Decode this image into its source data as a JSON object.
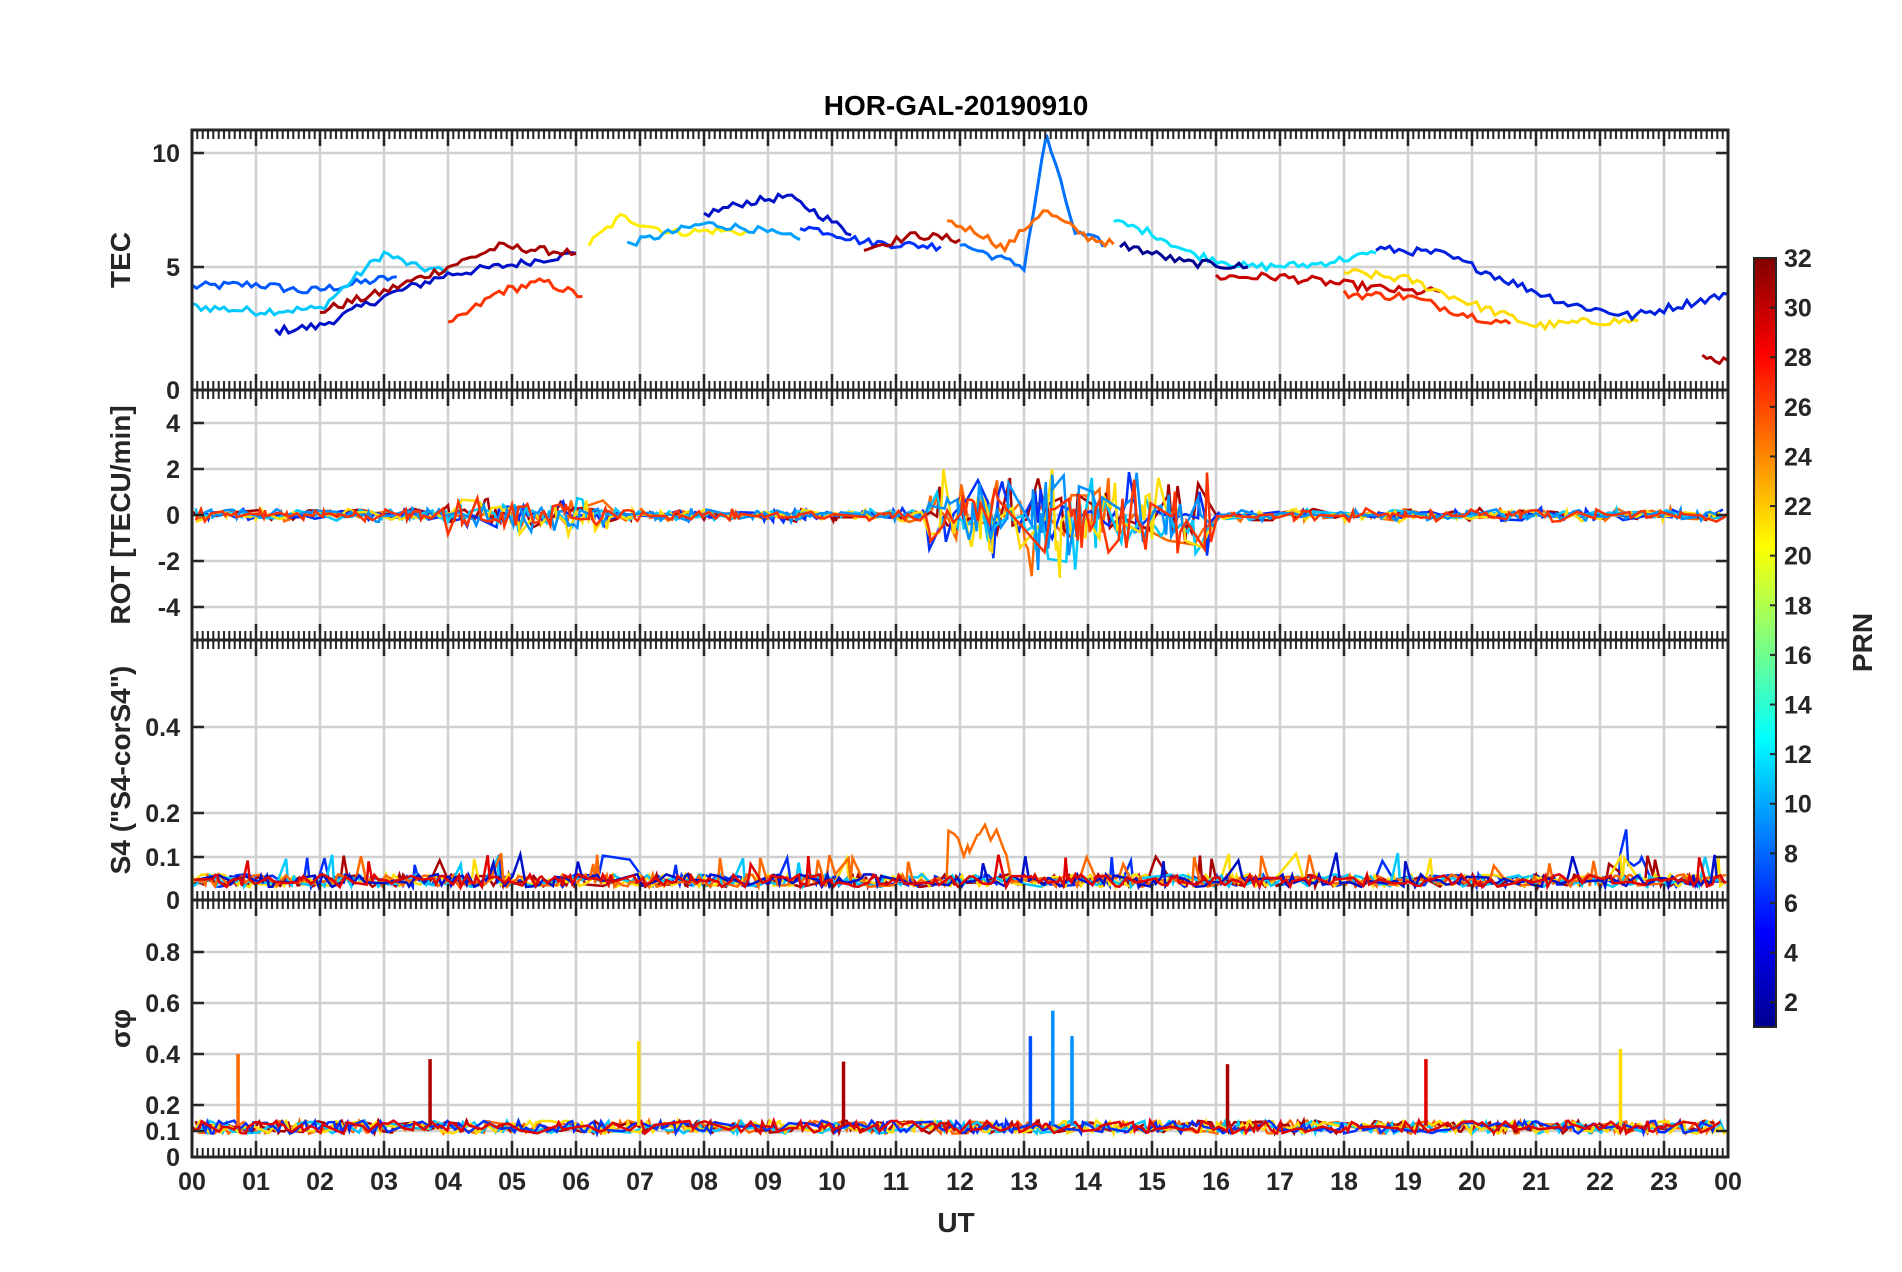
{
  "chart_data": {
    "type": "line",
    "title": "HOR-GAL-20190910",
    "xlabel": "UT",
    "x_ticks": [
      "00",
      "01",
      "02",
      "03",
      "04",
      "05",
      "06",
      "07",
      "08",
      "09",
      "10",
      "11",
      "12",
      "13",
      "14",
      "15",
      "16",
      "17",
      "18",
      "19",
      "20",
      "21",
      "22",
      "23",
      "00"
    ],
    "xlim_hours": [
      0,
      24
    ],
    "grid": true,
    "colorbar": {
      "label": "PRN",
      "range": [
        1,
        32
      ],
      "ticks": [
        "2",
        "4",
        "6",
        "8",
        "10",
        "12",
        "14",
        "16",
        "18",
        "20",
        "22",
        "24",
        "26",
        "28",
        "30",
        "32"
      ],
      "colormap": "jet"
    },
    "panels": [
      {
        "ylabel": "TEC",
        "ylim": [
          0,
          11
        ],
        "y_ticks": [
          "0",
          "5",
          "10"
        ],
        "series_approx": [
          {
            "prn": 8,
            "color": "#0057ff",
            "points": [
              [
                0,
                4.2
              ],
              [
                1,
                4.3
              ],
              [
                1.8,
                4.0
              ],
              [
                2.5,
                4.3
              ],
              [
                3.2,
                4.6
              ]
            ]
          },
          {
            "prn": 11,
            "color": "#00c8ff",
            "points": [
              [
                0,
                3.4
              ],
              [
                1,
                3.2
              ],
              [
                2,
                3.3
              ],
              [
                3,
                5.6
              ],
              [
                3.5,
                5.0
              ],
              [
                4,
                4.8
              ]
            ]
          },
          {
            "prn": 2,
            "color": "#0010c8",
            "points": [
              [
                1.3,
                2.4
              ],
              [
                2,
                2.6
              ],
              [
                3,
                3.8
              ],
              [
                4,
                4.7
              ],
              [
                5,
                5.1
              ],
              [
                6,
                5.6
              ]
            ]
          },
          {
            "prn": 31,
            "color": "#a80000",
            "points": [
              [
                2,
                3.2
              ],
              [
                3,
                4.0
              ],
              [
                4,
                5.0
              ],
              [
                4.8,
                5.9
              ],
              [
                6,
                5.6
              ]
            ]
          },
          {
            "prn": 27,
            "color": "#ff3300",
            "points": [
              [
                4,
                2.6
              ],
              [
                4.8,
                4.0
              ],
              [
                5.5,
                4.4
              ],
              [
                6.1,
                3.8
              ]
            ]
          },
          {
            "prn": 21,
            "color": "#ffee00",
            "points": [
              [
                6.2,
                6.0
              ],
              [
                6.7,
                7.2
              ],
              [
                7.5,
                6.5
              ],
              [
                8.2,
                6.6
              ],
              [
                8.8,
                6.5
              ]
            ]
          },
          {
            "prn": 10,
            "color": "#00a0ff",
            "points": [
              [
                6.8,
                6.0
              ],
              [
                8,
                6.9
              ],
              [
                8.7,
                6.7
              ],
              [
                9.5,
                6.2
              ]
            ]
          },
          {
            "prn": 2,
            "color": "#0010c8",
            "points": [
              [
                8,
                7.3
              ],
              [
                8.6,
                7.8
              ],
              [
                9.3,
                8.1
              ],
              [
                10,
                7.0
              ],
              [
                10.3,
                6.4
              ]
            ]
          },
          {
            "prn": 5,
            "color": "#0030ff",
            "points": [
              [
                9.5,
                6.8
              ],
              [
                10,
                6.5
              ],
              [
                10.5,
                6.1
              ],
              [
                11,
                6.0
              ],
              [
                11.7,
                5.9
              ]
            ]
          },
          {
            "prn": 31,
            "color": "#a80000",
            "points": [
              [
                10.5,
                5.8
              ],
              [
                11.3,
                6.4
              ],
              [
                12,
                6.2
              ]
            ]
          },
          {
            "prn": 9,
            "color": "#0070ff",
            "points": [
              [
                12,
                6.0
              ],
              [
                12.5,
                5.5
              ],
              [
                13,
                5.0
              ],
              [
                13.35,
                10.8
              ],
              [
                13.8,
                6.5
              ],
              [
                14.3,
                6.0
              ]
            ]
          },
          {
            "prn": 24,
            "color": "#ff6a00",
            "points": [
              [
                11.8,
                7.0
              ],
              [
                12.3,
                6.5
              ],
              [
                12.7,
                5.8
              ],
              [
                13.3,
                7.5
              ],
              [
                14,
                6.3
              ],
              [
                14.4,
                6.0
              ]
            ]
          },
          {
            "prn": 12,
            "color": "#00e0ff",
            "points": [
              [
                14.4,
                7.0
              ],
              [
                15,
                6.5
              ],
              [
                15.6,
                5.6
              ],
              [
                16.5,
                5.0
              ],
              [
                17.5,
                5.1
              ],
              [
                18.5,
                5.6
              ]
            ]
          },
          {
            "prn": 1,
            "color": "#000090",
            "points": [
              [
                14.5,
                6.0
              ],
              [
                15.5,
                5.2
              ],
              [
                16.5,
                5.0
              ]
            ]
          },
          {
            "prn": 29,
            "color": "#c80000",
            "points": [
              [
                16,
                4.6
              ],
              [
                17,
                4.6
              ],
              [
                18,
                4.3
              ],
              [
                19,
                4.0
              ],
              [
                19.5,
                4.0
              ]
            ]
          },
          {
            "prn": 20,
            "color": "#ffdd00",
            "points": [
              [
                18,
                4.8
              ],
              [
                19,
                4.5
              ],
              [
                20,
                3.5
              ],
              [
                21,
                2.6
              ],
              [
                22,
                2.8
              ],
              [
                22.6,
                2.8
              ]
            ]
          },
          {
            "prn": 4,
            "color": "#0020e0",
            "points": [
              [
                18.5,
                5.8
              ],
              [
                19.5,
                5.6
              ],
              [
                20.5,
                4.5
              ],
              [
                21.5,
                3.5
              ],
              [
                22.5,
                3.0
              ],
              [
                23.5,
                3.6
              ],
              [
                24,
                3.9
              ]
            ]
          },
          {
            "prn": 27,
            "color": "#ff3300",
            "points": [
              [
                18,
                3.9
              ],
              [
                19,
                3.8
              ],
              [
                20,
                3.0
              ],
              [
                20.6,
                2.7
              ]
            ]
          },
          {
            "prn": 30,
            "color": "#b00000",
            "points": [
              [
                23.6,
                1.3
              ],
              [
                24,
                1.2
              ]
            ]
          }
        ]
      },
      {
        "ylabel": "ROT [TECU/min]",
        "ylim": [
          -5,
          5
        ],
        "y_ticks": [
          "-4",
          "-2",
          "0",
          "2",
          "4"
        ],
        "notes": "fluctuations near 0 with enhanced activity 11.5–16 UT (up to ~2.6)"
      },
      {
        "ylabel": "S4 (\"S4-corS4\")",
        "ylim": [
          0,
          0.6
        ],
        "y_ticks": [
          "0",
          "0.1",
          "0.2",
          "0.4"
        ],
        "notes": "mostly 0.02–0.1, peaks ~0.16 near 12 UT and 22.5 UT"
      },
      {
        "ylabel": "σφ",
        "ylim": [
          0,
          1
        ],
        "y_ticks": [
          "0",
          "0.1",
          "0.2",
          "0.4",
          "0.6",
          "0.8"
        ],
        "spikes": [
          {
            "t": 0.72,
            "value": 0.4,
            "color": "#ff6a00"
          },
          {
            "t": 3.72,
            "value": 0.38,
            "color": "#b00000"
          },
          {
            "t": 6.98,
            "value": 0.45,
            "color": "#ffdd00"
          },
          {
            "t": 10.18,
            "value": 0.37,
            "color": "#a80000"
          },
          {
            "t": 13.1,
            "value": 0.47,
            "color": "#0050ff"
          },
          {
            "t": 13.45,
            "value": 0.57,
            "color": "#0090ff"
          },
          {
            "t": 13.75,
            "value": 0.47,
            "color": "#0090ff"
          },
          {
            "t": 16.18,
            "value": 0.36,
            "color": "#a80000"
          },
          {
            "t": 19.28,
            "value": 0.38,
            "color": "#e00000"
          },
          {
            "t": 22.32,
            "value": 0.42,
            "color": "#ffdd00"
          }
        ],
        "baseline": "~0.1"
      }
    ]
  }
}
